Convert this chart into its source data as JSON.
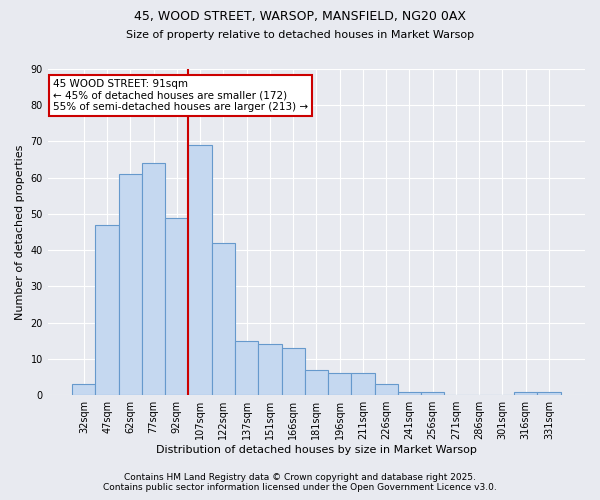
{
  "title1": "45, WOOD STREET, WARSOP, MANSFIELD, NG20 0AX",
  "title2": "Size of property relative to detached houses in Market Warsop",
  "xlabel": "Distribution of detached houses by size in Market Warsop",
  "ylabel": "Number of detached properties",
  "bar_labels": [
    "32sqm",
    "47sqm",
    "62sqm",
    "77sqm",
    "92sqm",
    "107sqm",
    "122sqm",
    "137sqm",
    "151sqm",
    "166sqm",
    "181sqm",
    "196sqm",
    "211sqm",
    "226sqm",
    "241sqm",
    "256sqm",
    "271sqm",
    "286sqm",
    "301sqm",
    "316sqm",
    "331sqm"
  ],
  "bar_values": [
    3,
    47,
    61,
    64,
    49,
    69,
    42,
    15,
    14,
    13,
    7,
    6,
    6,
    3,
    1,
    1,
    0,
    0,
    0,
    1,
    1
  ],
  "bar_color": "#c5d8f0",
  "bar_edge_color": "#6699cc",
  "background_color": "#e8eaf0",
  "grid_color": "#ffffff",
  "red_line_index": 4,
  "annotation_text_line1": "45 WOOD STREET: 91sqm",
  "annotation_text_line2": "← 45% of detached houses are smaller (172)",
  "annotation_text_line3": "55% of semi-detached houses are larger (213) →",
  "annotation_box_color": "#ffffff",
  "annotation_box_edge": "#cc0000",
  "red_line_color": "#cc0000",
  "footer1": "Contains HM Land Registry data © Crown copyright and database right 2025.",
  "footer2": "Contains public sector information licensed under the Open Government Licence v3.0.",
  "ylim": [
    0,
    90
  ],
  "yticks": [
    0,
    10,
    20,
    30,
    40,
    50,
    60,
    70,
    80,
    90
  ],
  "title1_fontsize": 9,
  "title2_fontsize": 8,
  "ylabel_fontsize": 8,
  "xlabel_fontsize": 8,
  "tick_fontsize": 7,
  "footer_fontsize": 6.5
}
